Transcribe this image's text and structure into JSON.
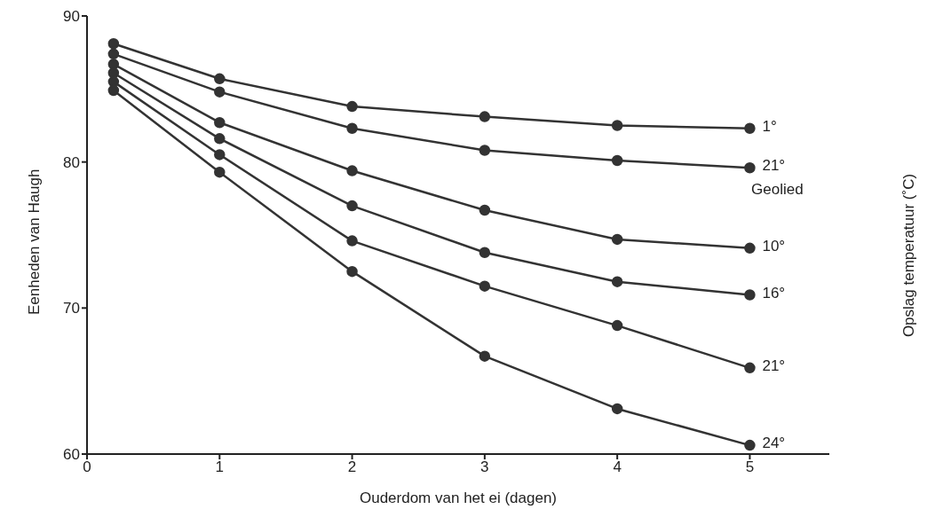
{
  "chart_data": {
    "type": "line",
    "xlabel": "Ouderdom van het ei (dagen)",
    "ylabel": "Eenheden van Haugh",
    "y2label": "Opslag temperatuur (˚C)",
    "x": [
      0.2,
      1,
      2,
      3,
      4,
      5
    ],
    "series": [
      {
        "name": "1°",
        "color": "#333333",
        "values": [
          88.1,
          85.7,
          83.8,
          83.1,
          82.5,
          82.3
        ]
      },
      {
        "name": "21°",
        "color": "#333333",
        "values": [
          87.4,
          84.8,
          82.3,
          80.8,
          80.1,
          79.6
        ]
      },
      {
        "name": "10°",
        "color": "#333333",
        "values": [
          86.7,
          82.7,
          79.4,
          76.7,
          74.7,
          74.1
        ]
      },
      {
        "name": "16°",
        "color": "#333333",
        "values": [
          86.1,
          81.6,
          77.0,
          73.8,
          71.8,
          70.9
        ]
      },
      {
        "name": "21°",
        "color": "#333333",
        "values": [
          85.5,
          80.5,
          74.6,
          71.5,
          68.8,
          65.9
        ]
      },
      {
        "name": "24°",
        "color": "#333333",
        "values": [
          84.9,
          79.3,
          72.5,
          66.7,
          63.1,
          60.6
        ]
      }
    ],
    "annotations": [
      "Geolied"
    ],
    "xlim": [
      0,
      5.6
    ],
    "xticks": [
      0,
      1,
      2,
      3,
      4,
      5
    ],
    "ylim": [
      60,
      90
    ],
    "yticks": [
      60,
      70,
      80,
      90
    ],
    "grid": false,
    "legend": false,
    "marker": "circle",
    "line_style": "solid"
  }
}
